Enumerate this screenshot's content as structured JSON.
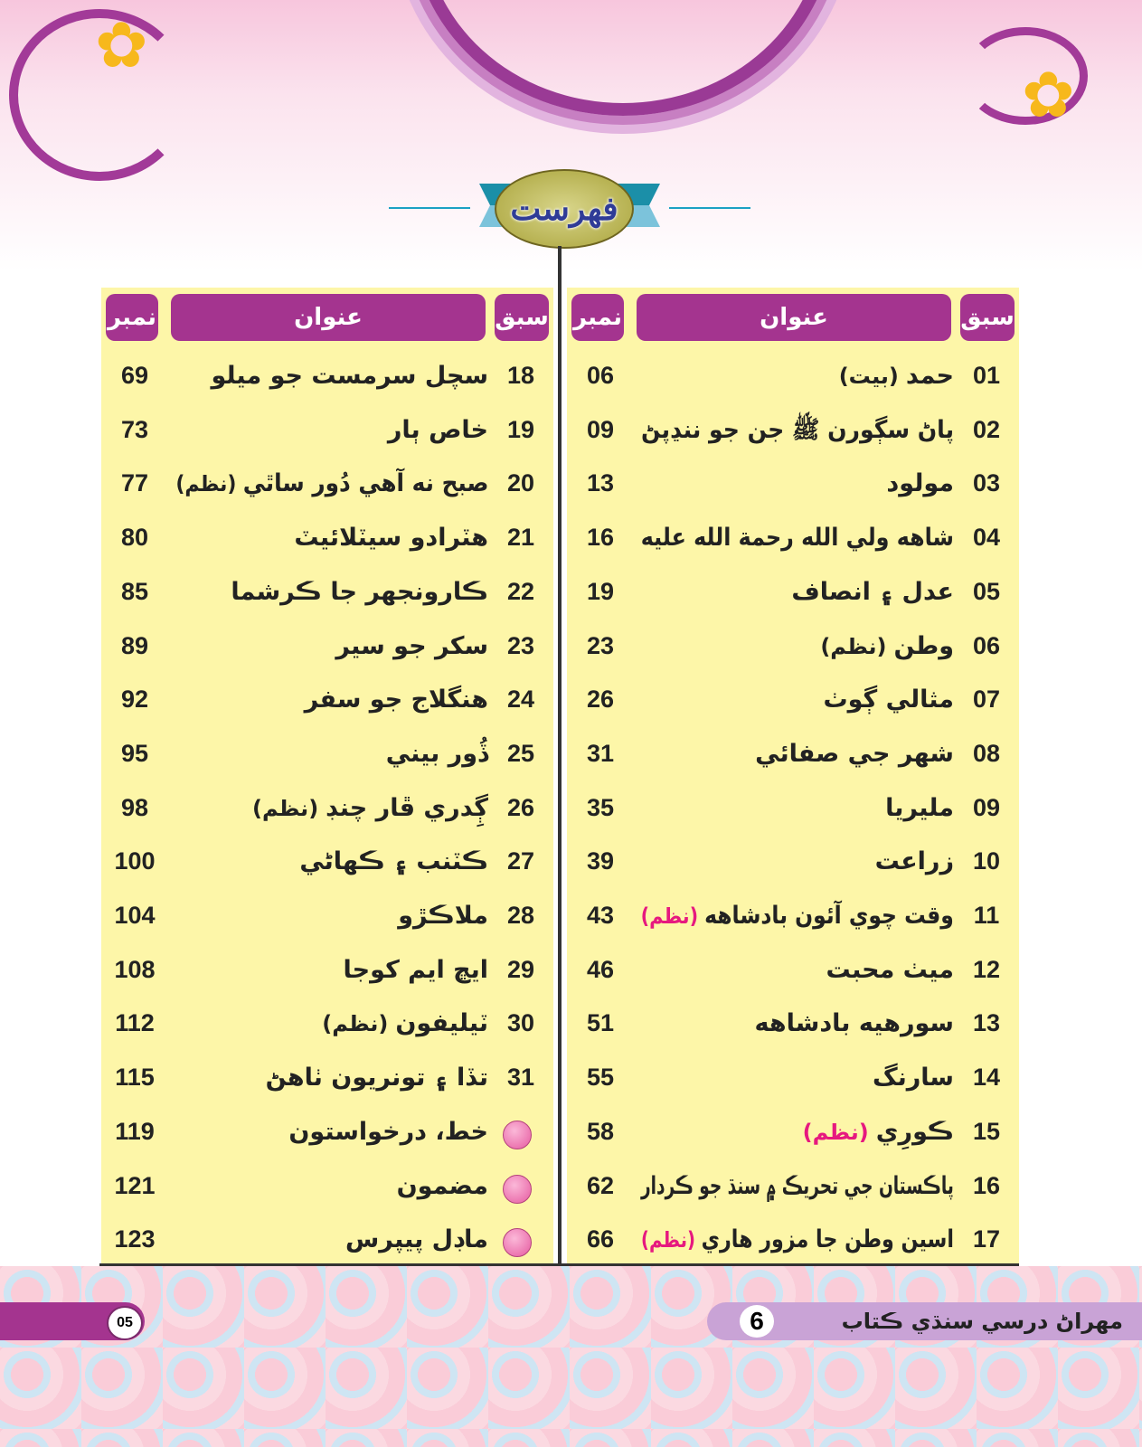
{
  "heading": "فهرست",
  "columns": {
    "lesson": "سبق",
    "title": "عنوان",
    "page": "نمبر"
  },
  "note_color_pink": "#e6197f",
  "header_color": "#a4348f",
  "panel_color": "#fdf6a8",
  "right_rows": [
    {
      "num": "01",
      "title": "حمد",
      "note": "(بيت)",
      "page": "06"
    },
    {
      "num": "02",
      "title": "پاڻ سڳورن ﷺ جن جو ننڍپڻ",
      "note": "",
      "page": "09"
    },
    {
      "num": "03",
      "title": "مولود",
      "note": "",
      "page": "13"
    },
    {
      "num": "04",
      "title": "شاهه ولي الله رحمة الله عليه",
      "note": "",
      "page": "16"
    },
    {
      "num": "05",
      "title": "عدل ۽ انصاف",
      "note": "",
      "page": "19"
    },
    {
      "num": "06",
      "title": "وطن",
      "note": "(نظم)",
      "page": "23"
    },
    {
      "num": "07",
      "title": "مثالي ڳوٺ",
      "note": "",
      "page": "26"
    },
    {
      "num": "08",
      "title": "شهر جي صفائي",
      "note": "",
      "page": "31"
    },
    {
      "num": "09",
      "title": "مليريا",
      "note": "",
      "page": "35"
    },
    {
      "num": "10",
      "title": "زراعت",
      "note": "",
      "page": "39"
    },
    {
      "num": "11",
      "title": "وقت چوي آئون بادشاهه",
      "note": "(نظم)",
      "note_pink": true,
      "page": "43"
    },
    {
      "num": "12",
      "title": "ميٺ محبت",
      "note": "",
      "page": "46"
    },
    {
      "num": "13",
      "title": "سورهيه بادشاهه",
      "note": "",
      "page": "51"
    },
    {
      "num": "14",
      "title": "سارنگ",
      "note": "",
      "page": "55"
    },
    {
      "num": "15",
      "title": "ڪورِي",
      "note": "(نظم)",
      "note_pink": true,
      "page": "58"
    },
    {
      "num": "16",
      "title": "پاڪستان جي تحريڪ ۾ سنڌ جو ڪردار",
      "note": "",
      "page": "62"
    },
    {
      "num": "17",
      "title": "اسين وطن جا مزور هاري",
      "note": "(نظم)",
      "note_pink": true,
      "page": "66"
    }
  ],
  "left_rows": [
    {
      "num": "18",
      "title": "سچل سرمست جو ميلو",
      "note": "",
      "page": "69"
    },
    {
      "num": "19",
      "title": "خاص ٻار",
      "note": "",
      "page": "73"
    },
    {
      "num": "20",
      "title": "صبح نه آهي دُور ساٿي",
      "note": "(نظم)",
      "page": "77"
    },
    {
      "num": "21",
      "title": "هٽرادو سيٽلائيٽ",
      "note": "",
      "page": "80"
    },
    {
      "num": "22",
      "title": "ڪارونجهر جا ڪرشما",
      "note": "",
      "page": "85"
    },
    {
      "num": "23",
      "title": "سکر جو سير",
      "note": "",
      "page": "89"
    },
    {
      "num": "24",
      "title": "هنگلاج جو سفر",
      "note": "",
      "page": "92"
    },
    {
      "num": "25",
      "title": "ڏُور بيني",
      "note": "",
      "page": "95"
    },
    {
      "num": "26",
      "title": "ڳِدري ڦار چنڊ",
      "note": "(نظم)",
      "page": "98"
    },
    {
      "num": "27",
      "title": "ڪٽنب ۽ ڪهاڻي",
      "note": "",
      "page": "100"
    },
    {
      "num": "28",
      "title": "ملاڪڙو",
      "note": "",
      "page": "104"
    },
    {
      "num": "29",
      "title": "ايڇ ايم کوجا",
      "note": "",
      "page": "108"
    },
    {
      "num": "30",
      "title": "ٽيليفون",
      "note": "(نظم)",
      "page": "112"
    },
    {
      "num": "31",
      "title": "تڏا ۽ تونريون ٺاهڻ",
      "note": "",
      "page": "115"
    },
    {
      "num": "",
      "bullet": true,
      "title": "خط، درخواستون",
      "note": "",
      "page": "119"
    },
    {
      "num": "",
      "bullet": true,
      "title": "مضمون",
      "note": "",
      "page": "121"
    },
    {
      "num": "",
      "bullet": true,
      "title": "ماڊل پيپرس",
      "note": "",
      "page": "123"
    }
  ],
  "footer": {
    "page_number": "05",
    "book_title": "مهراڻ درسي سنڌي ڪتاب",
    "grade": "6"
  }
}
